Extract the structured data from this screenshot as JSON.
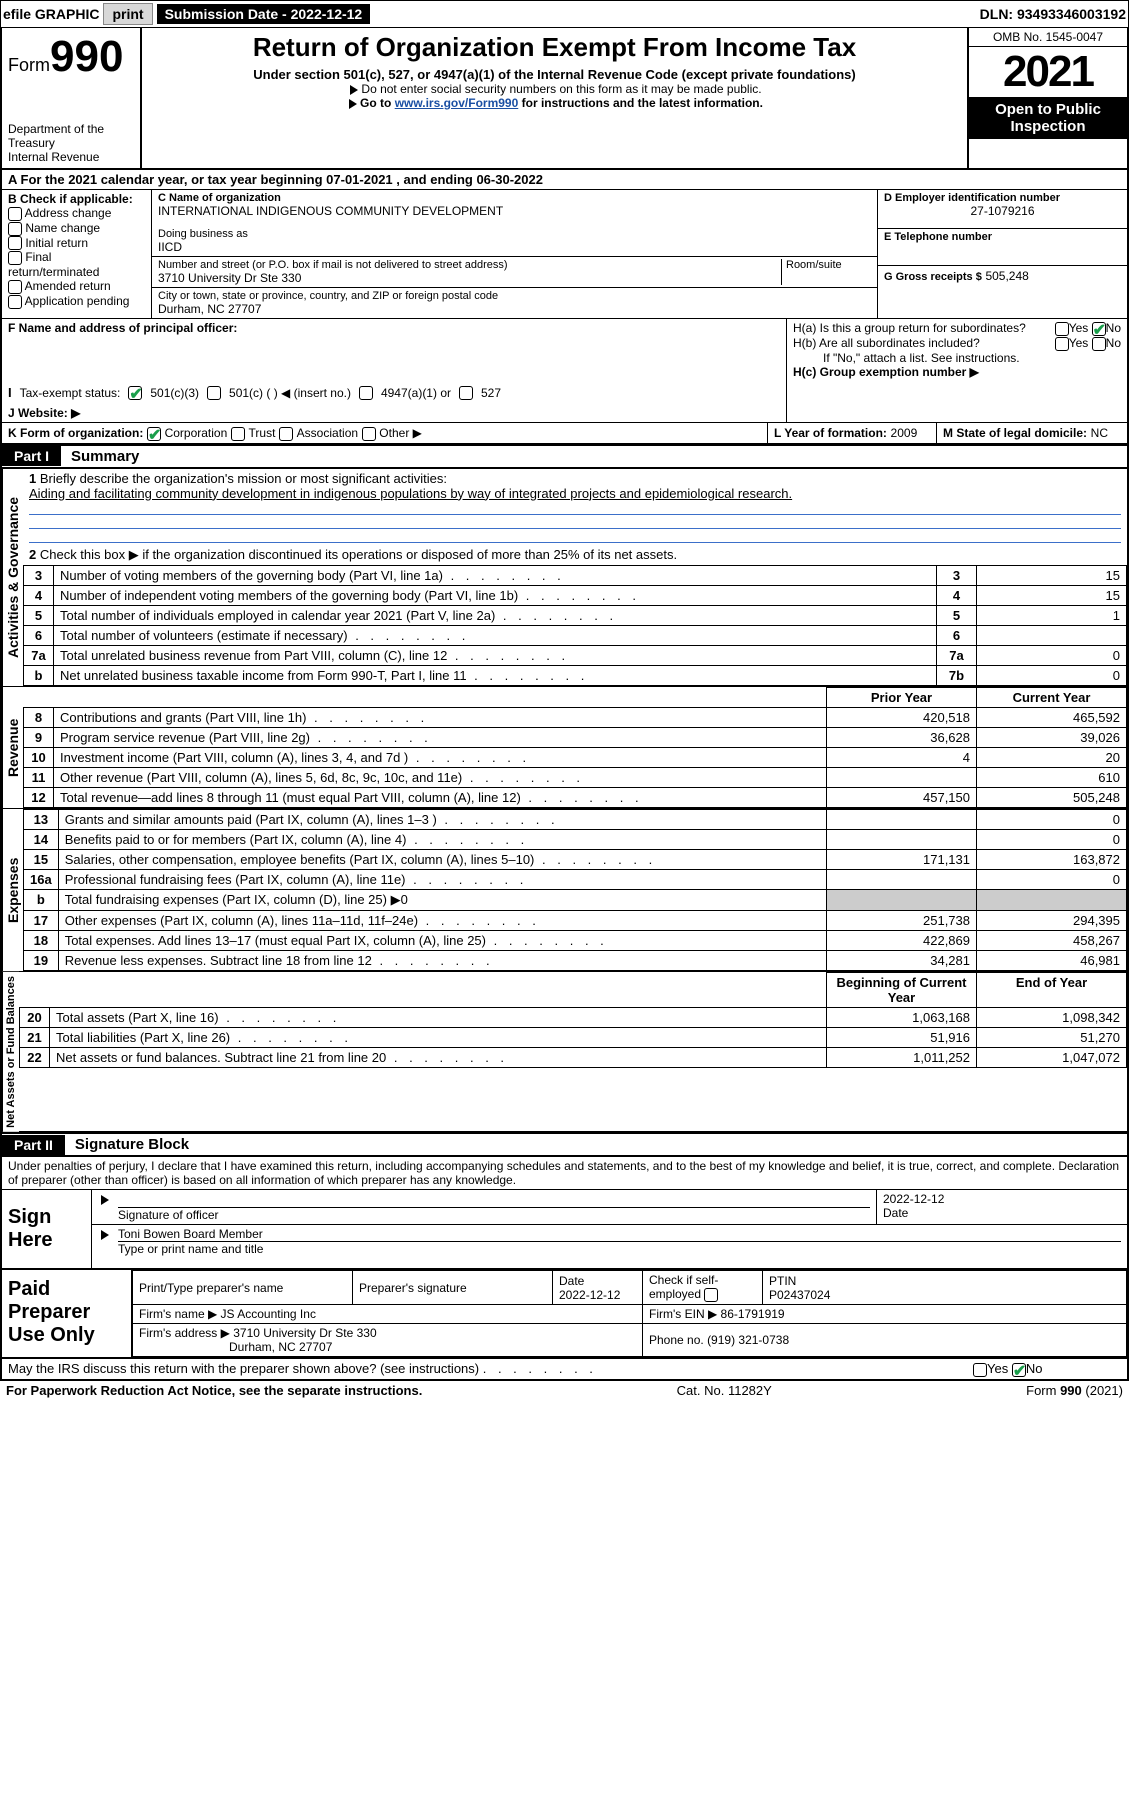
{
  "topbar": {
    "efile": "efile GRAPHIC",
    "print": "print",
    "subdate_label": "Submission Date - 2022-12-12",
    "dln": "DLN: 93493346003192"
  },
  "header": {
    "form_prefix": "Form",
    "form_num": "990",
    "dept": "Department of the Treasury",
    "irs": "Internal Revenue Service",
    "title": "Return of Organization Exempt From Income Tax",
    "sub": "Under section 501(c), 527, or 4947(a)(1) of the Internal Revenue Code (except private foundations)",
    "note1": "Do not enter social security numbers on this form as it may be made public.",
    "note2_pre": "Go to ",
    "note2_link": "www.irs.gov/Form990",
    "note2_post": " for instructions and the latest information.",
    "omb": "OMB No. 1545-0047",
    "year": "2021",
    "open": "Open to Public Inspection"
  },
  "A": {
    "text_pre": "For the 2021 calendar year, or tax year beginning ",
    "begin": "07-01-2021",
    "mid": " , and ending ",
    "end": "06-30-2022"
  },
  "B": {
    "label": "B Check if applicable:",
    "opts": [
      "Address change",
      "Name change",
      "Initial return",
      "Final return/terminated",
      "Amended return",
      "Application pending"
    ]
  },
  "C": {
    "name_label": "C Name of organization",
    "name": "INTERNATIONAL INDIGENOUS COMMUNITY DEVELOPMENT",
    "dba_label": "Doing business as",
    "dba": "IICD",
    "street_label": "Number and street (or P.O. box if mail is not delivered to street address)",
    "room_label": "Room/suite",
    "street": "3710 University Dr Ste 330",
    "city_label": "City or town, state or province, country, and ZIP or foreign postal code",
    "city": "Durham, NC  27707"
  },
  "D": {
    "label": "D Employer identification number",
    "val": "27-1079216"
  },
  "E": {
    "label": "E Telephone number"
  },
  "F": {
    "label": "F  Name and address of principal officer:"
  },
  "G": {
    "label": "G Gross receipts $",
    "val": "505,248"
  },
  "H": {
    "a": "H(a)  Is this a group return for subordinates?",
    "b": "H(b)  Are all subordinates included?",
    "b_note": "If \"No,\" attach a list. See instructions.",
    "c": "H(c)  Group exemption number ▶",
    "yes": "Yes",
    "no": "No"
  },
  "I": {
    "label": "Tax-exempt status:",
    "o1": "501(c)(3)",
    "o2": "501(c) (  ) ◀ (insert no.)",
    "o3": "4947(a)(1) or",
    "o4": "527"
  },
  "J": {
    "label": "Website: ▶"
  },
  "K": {
    "label": "K Form of organization:",
    "o1": "Corporation",
    "o2": "Trust",
    "o3": "Association",
    "o4": "Other ▶"
  },
  "L": {
    "label": "L Year of formation:",
    "val": "2009"
  },
  "M": {
    "label": "M State of legal domicile:",
    "val": "NC"
  },
  "partI": {
    "tab": "Part I",
    "title": "Summary"
  },
  "summary": {
    "q1": "Briefly describe the organization's mission or most significant activities:",
    "q1_ans": "Aiding and facilitating community development in indigenous populations by way of integrated projects and epidemiological research.",
    "q2": "Check this box ▶        if the organization discontinued its operations or disposed of more than 25% of its net assets.",
    "side_ag": "Activities & Governance",
    "side_rev": "Revenue",
    "side_exp": "Expenses",
    "side_net": "Net Assets or Fund Balances",
    "rows_gov": [
      {
        "n": "3",
        "label": "Number of voting members of the governing body (Part VI, line 1a)",
        "box": "3",
        "val": "15"
      },
      {
        "n": "4",
        "label": "Number of independent voting members of the governing body (Part VI, line 1b)",
        "box": "4",
        "val": "15"
      },
      {
        "n": "5",
        "label": "Total number of individuals employed in calendar year 2021 (Part V, line 2a)",
        "box": "5",
        "val": "1"
      },
      {
        "n": "6",
        "label": "Total number of volunteers (estimate if necessary)",
        "box": "6",
        "val": ""
      },
      {
        "n": "7a",
        "label": "Total unrelated business revenue from Part VIII, column (C), line 12",
        "box": "7a",
        "val": "0"
      },
      {
        "n": "b",
        "label": "Net unrelated business taxable income from Form 990-T, Part I, line 11",
        "box": "7b",
        "val": "0"
      }
    ],
    "col_prior": "Prior Year",
    "col_curr": "Current Year",
    "rows_rev": [
      {
        "n": "8",
        "label": "Contributions and grants (Part VIII, line 1h)",
        "p": "420,518",
        "c": "465,592"
      },
      {
        "n": "9",
        "label": "Program service revenue (Part VIII, line 2g)",
        "p": "36,628",
        "c": "39,026"
      },
      {
        "n": "10",
        "label": "Investment income (Part VIII, column (A), lines 3, 4, and 7d )",
        "p": "4",
        "c": "20"
      },
      {
        "n": "11",
        "label": "Other revenue (Part VIII, column (A), lines 5, 6d, 8c, 9c, 10c, and 11e)",
        "p": "",
        "c": "610"
      },
      {
        "n": "12",
        "label": "Total revenue—add lines 8 through 11 (must equal Part VIII, column (A), line 12)",
        "p": "457,150",
        "c": "505,248"
      }
    ],
    "rows_exp": [
      {
        "n": "13",
        "label": "Grants and similar amounts paid (Part IX, column (A), lines 1–3 )",
        "p": "",
        "c": "0"
      },
      {
        "n": "14",
        "label": "Benefits paid to or for members (Part IX, column (A), line 4)",
        "p": "",
        "c": "0"
      },
      {
        "n": "15",
        "label": "Salaries, other compensation, employee benefits (Part IX, column (A), lines 5–10)",
        "p": "171,131",
        "c": "163,872"
      },
      {
        "n": "16a",
        "label": "Professional fundraising fees (Part IX, column (A), line 11e)",
        "p": "",
        "c": "0"
      },
      {
        "n": "b",
        "label": "Total fundraising expenses (Part IX, column (D), line 25) ▶0",
        "p": "__shade__",
        "c": "__shade__"
      },
      {
        "n": "17",
        "label": "Other expenses (Part IX, column (A), lines 11a–11d, 11f–24e)",
        "p": "251,738",
        "c": "294,395"
      },
      {
        "n": "18",
        "label": "Total expenses. Add lines 13–17 (must equal Part IX, column (A), line 25)",
        "p": "422,869",
        "c": "458,267"
      },
      {
        "n": "19",
        "label": "Revenue less expenses. Subtract line 18 from line 12",
        "p": "34,281",
        "c": "46,981"
      }
    ],
    "col_begin": "Beginning of Current Year",
    "col_end": "End of Year",
    "rows_net": [
      {
        "n": "20",
        "label": "Total assets (Part X, line 16)",
        "p": "1,063,168",
        "c": "1,098,342"
      },
      {
        "n": "21",
        "label": "Total liabilities (Part X, line 26)",
        "p": "51,916",
        "c": "51,270"
      },
      {
        "n": "22",
        "label": "Net assets or fund balances. Subtract line 21 from line 20",
        "p": "1,011,252",
        "c": "1,047,072"
      }
    ]
  },
  "partII": {
    "tab": "Part II",
    "title": "Signature Block"
  },
  "decl": "Under penalties of perjury, I declare that I have examined this return, including accompanying schedules and statements, and to the best of my knowledge and belief, it is true, correct, and complete. Declaration of preparer (other than officer) is based on all information of which preparer has any knowledge.",
  "sign": {
    "left": "Sign Here",
    "sig_label": "Signature of officer",
    "date_label": "Date",
    "date": "2022-12-12",
    "name": "Toni Bowen  Board Member",
    "name_label": "Type or print name and title"
  },
  "prep": {
    "left": "Paid Preparer Use Only",
    "h1": "Print/Type preparer's name",
    "h2": "Preparer's signature",
    "h3": "Date",
    "h3v": "2022-12-12",
    "h4": "Check        if self-employed",
    "h5": "PTIN",
    "h5v": "P02437024",
    "firm_label": "Firm's name    ▶",
    "firm": "JS Accounting Inc",
    "ein_label": "Firm's EIN ▶",
    "ein": "86-1791919",
    "addr_label": "Firm's address ▶",
    "addr1": "3710 University Dr Ste 330",
    "addr2": "Durham, NC  27707",
    "phone_label": "Phone no.",
    "phone": "(919) 321-0738"
  },
  "discuss": "May the IRS discuss this return with the preparer shown above? (see instructions)",
  "footer": {
    "left": "For Paperwork Reduction Act Notice, see the separate instructions.",
    "mid": "Cat. No. 11282Y",
    "right": "Form 990 (2021)"
  },
  "colors": {
    "link": "#1a4fa3",
    "check": "#1a9e4b"
  }
}
